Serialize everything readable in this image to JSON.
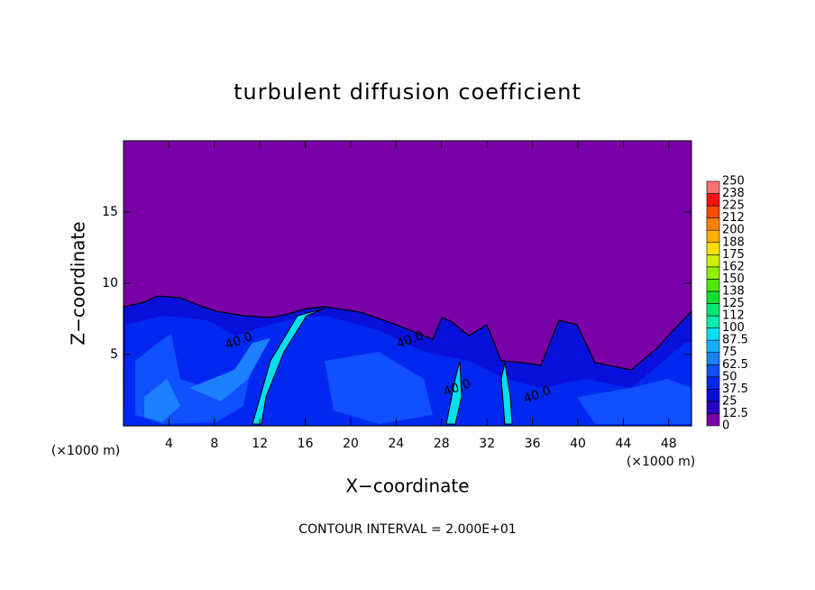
{
  "chart_data": {
    "type": "contour",
    "title": "turbulent diffusion coefficient",
    "x_label": "X−coordinate",
    "y_label": "Z−coordinate",
    "x_unit": "(×1000 m)",
    "y_unit": "(×1000 m)",
    "xlim": [
      0,
      50
    ],
    "ylim": [
      0,
      20
    ],
    "xticks": [
      4,
      8,
      12,
      16,
      20,
      24,
      28,
      32,
      36,
      40,
      44,
      48
    ],
    "yticks": [
      5,
      10,
      15
    ],
    "levels": [
      0,
      12.5,
      25,
      37.5,
      50,
      62.5,
      75,
      87.5,
      100,
      112,
      125,
      138,
      150,
      162,
      175,
      188,
      200,
      212,
      225,
      238,
      250
    ],
    "colors": [
      "#7a00a8",
      "#2a00c8",
      "#0a10dc",
      "#0028f0",
      "#1050ff",
      "#1c80ff",
      "#10b0ff",
      "#00e0f0",
      "#00f0b0",
      "#00e870",
      "#10e030",
      "#50e800",
      "#90f000",
      "#d0f000",
      "#ffe000",
      "#ffb000",
      "#ff8000",
      "#ff4800",
      "#ff1010",
      "#ff7070"
    ],
    "contour_labels": [
      "40.0",
      "40.0",
      "40.0",
      "40.0"
    ],
    "annotation": "CONTOUR INTERVAL = 2.000E+01"
  }
}
